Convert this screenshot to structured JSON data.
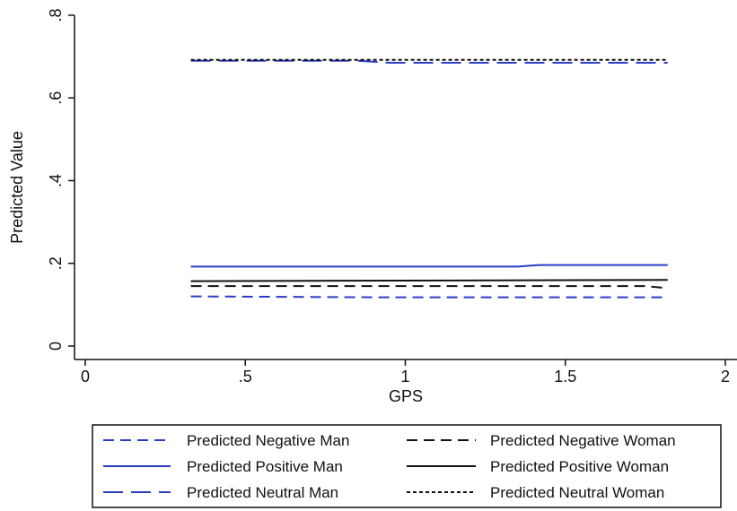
{
  "chart_data": {
    "type": "line",
    "xlabel": "GPS",
    "ylabel": "Predicted Value",
    "xlim": [
      0,
      2
    ],
    "ylim": [
      0,
      0.8
    ],
    "xticks": [
      0,
      0.5,
      1,
      1.5,
      2
    ],
    "xtick_labels": [
      "0",
      ".5",
      "1",
      "1.5",
      "2"
    ],
    "yticks": [
      0,
      0.2,
      0.4,
      0.6,
      0.8
    ],
    "ytick_labels": [
      "0",
      ".2",
      ".4",
      ".6",
      ".8"
    ],
    "grid": false,
    "legend_position": "bottom",
    "series": [
      {
        "name": "Predicted Negative Man",
        "color": "#2b3cc4",
        "dash": "short-dash",
        "x": [
          0.33,
          0.9,
          1.82
        ],
        "y": [
          0.12,
          0.118,
          0.118
        ]
      },
      {
        "name": "Predicted Negative Woman",
        "color": "#111111",
        "dash": "short-dash",
        "x": [
          0.33,
          1.75,
          1.82
        ],
        "y": [
          0.145,
          0.145,
          0.14
        ]
      },
      {
        "name": "Predicted Positive Man",
        "color": "#2b3cc4",
        "dash": "solid",
        "x": [
          0.33,
          1.35,
          1.42,
          1.82
        ],
        "y": [
          0.192,
          0.192,
          0.196,
          0.196
        ]
      },
      {
        "name": "Predicted Positive Woman",
        "color": "#111111",
        "dash": "solid",
        "x": [
          0.33,
          1.82
        ],
        "y": [
          0.157,
          0.16
        ]
      },
      {
        "name": "Predicted Neutral Man",
        "color": "#2b3cc4",
        "dash": "long-dash",
        "x": [
          0.33,
          0.85,
          0.95,
          1.82
        ],
        "y": [
          0.69,
          0.69,
          0.685,
          0.685
        ]
      },
      {
        "name": "Predicted Neutral Woman",
        "color": "#111111",
        "dash": "dotted",
        "x": [
          0.33,
          1.82
        ],
        "y": [
          0.692,
          0.692
        ]
      }
    ]
  }
}
